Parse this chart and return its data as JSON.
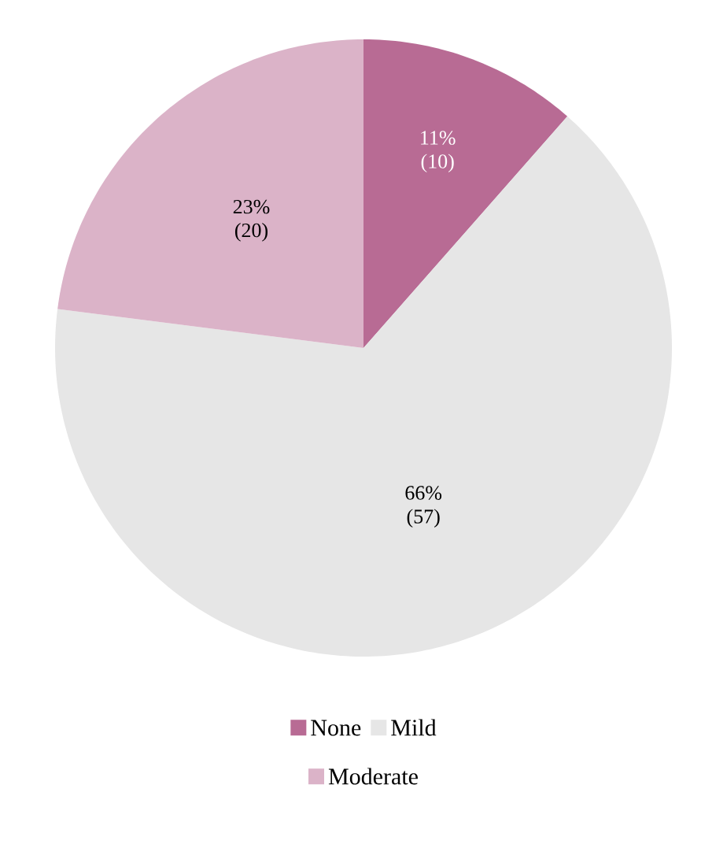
{
  "chart_data": {
    "type": "pie",
    "categories": [
      "None",
      "Mild",
      "Moderate"
    ],
    "values": [
      10,
      57,
      20
    ],
    "colors": [
      "#b86b94",
      "#e6e6e6",
      "#dbb3c8"
    ],
    "value_labels": [
      "11% (10)",
      "66% (57)",
      "23% (20)"
    ],
    "legend": "bottom"
  }
}
